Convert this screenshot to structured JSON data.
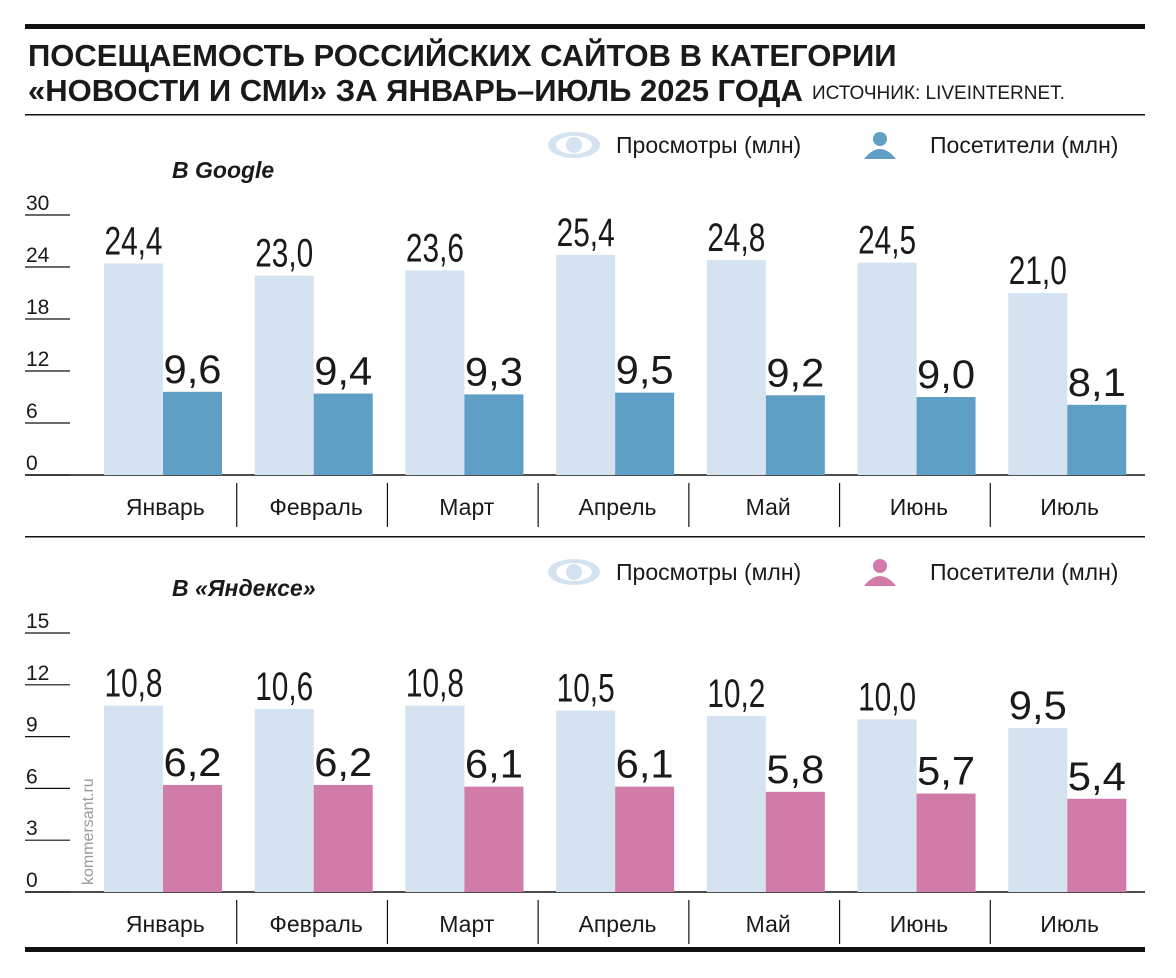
{
  "title": [
    "ПОСЕЩАЕМОСТЬ РОССИЙСКИХ САЙТОВ В КАТЕГОРИИ",
    "«НОВОСТИ И СМИ» ЗА ЯНВАРЬ–ИЮЛЬ 2025 ГОДА"
  ],
  "source": "ИСТОЧНИК: LIVEINTERNET.",
  "watermark": "kommersant.ru",
  "chart_data": [
    {
      "type": "bar",
      "subtitle": "В Google",
      "categories": [
        "Январь",
        "Февраль",
        "Март",
        "Апрель",
        "Май",
        "Июнь",
        "Июль"
      ],
      "series": [
        {
          "name": "Просмотры (млн)",
          "color": "#d4e3ef",
          "values": [
            24.4,
            23.0,
            23.6,
            25.4,
            24.8,
            24.5,
            21.0
          ],
          "value_labels": [
            "24,4",
            "23,0",
            "23,6",
            "25,4",
            "24,8",
            "24,5",
            "21,0"
          ]
        },
        {
          "name": "Посетители (млн)",
          "color": "#5f9fc6",
          "values": [
            9.6,
            9.4,
            9.3,
            9.5,
            9.2,
            9.0,
            8.1
          ],
          "value_labels": [
            "9,6",
            "9,4",
            "9,3",
            "9,5",
            "9,2",
            "9,0",
            "8,1"
          ]
        }
      ],
      "ylim": [
        0,
        30
      ],
      "yticks": [
        0,
        6,
        12,
        18,
        24,
        30
      ]
    },
    {
      "type": "bar",
      "subtitle": "В «Яндексе»",
      "categories": [
        "Январь",
        "Февраль",
        "Март",
        "Апрель",
        "Май",
        "Июнь",
        "Июль"
      ],
      "series": [
        {
          "name": "Просмотры (млн)",
          "color": "#d4e3ef",
          "values": [
            10.8,
            10.6,
            10.8,
            10.5,
            10.2,
            10.0,
            9.5
          ],
          "value_labels": [
            "10,8",
            "10,6",
            "10,8",
            "10,5",
            "10,2",
            "10,0",
            "9,5"
          ]
        },
        {
          "name": "Посетители (млн)",
          "color": "#d17ba8",
          "values": [
            6.2,
            6.2,
            6.1,
            6.1,
            5.8,
            5.7,
            5.4
          ],
          "value_labels": [
            "6,2",
            "6,2",
            "6,1",
            "6,1",
            "5,8",
            "5,7",
            "5,4"
          ]
        }
      ],
      "ylim": [
        0,
        15
      ],
      "yticks": [
        0,
        3,
        6,
        9,
        12,
        15
      ]
    }
  ]
}
